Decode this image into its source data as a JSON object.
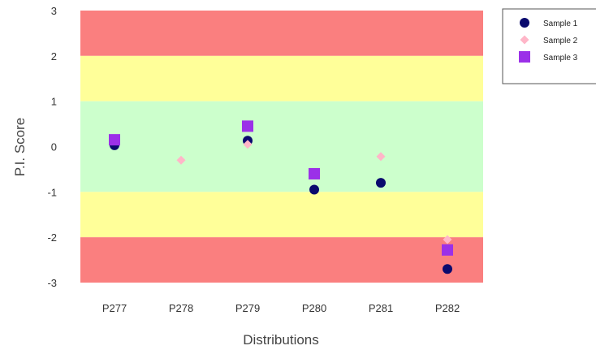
{
  "chart_data": {
    "type": "scatter",
    "title": "",
    "xlabel": "Distributions",
    "ylabel": "P.I. Score",
    "ylim": [
      -3,
      3
    ],
    "yticks": [
      3,
      2,
      1,
      0,
      -1,
      -2,
      -3
    ],
    "categories": [
      "P277",
      "P278",
      "P279",
      "P280",
      "P281",
      "P282"
    ],
    "bands": [
      {
        "from": 2,
        "to": 3,
        "color": "#fa7f7f"
      },
      {
        "from": 1,
        "to": 2,
        "color": "#ffff99"
      },
      {
        "from": -1,
        "to": 1,
        "color": "#ccffcc"
      },
      {
        "from": -2,
        "to": -1,
        "color": "#ffff99"
      },
      {
        "from": -3,
        "to": -2,
        "color": "#fa7f7f"
      }
    ],
    "legend_position": "top-right",
    "series": [
      {
        "name": "Sample 1",
        "marker": "circle",
        "color": "#0a0a6e",
        "values": [
          0.03,
          null,
          0.13,
          -0.95,
          -0.8,
          -2.7
        ]
      },
      {
        "name": "Sample 2",
        "marker": "diamond",
        "color": "#ffb6c8",
        "values": [
          null,
          -0.3,
          0.05,
          null,
          -0.22,
          -2.05
        ]
      },
      {
        "name": "Sample 3",
        "marker": "square",
        "color": "#9b30e8",
        "values": [
          0.15,
          null,
          0.45,
          -0.6,
          null,
          -2.28
        ]
      }
    ]
  }
}
